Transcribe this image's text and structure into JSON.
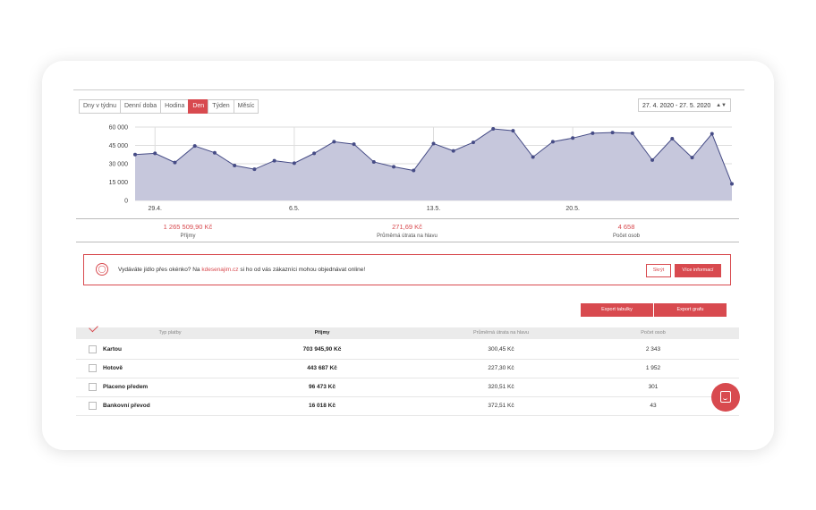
{
  "period_tabs": [
    {
      "label": "Dny v týdnu",
      "active": false
    },
    {
      "label": "Denní doba",
      "active": false
    },
    {
      "label": "Hodina",
      "active": false
    },
    {
      "label": "Den",
      "active": true
    },
    {
      "label": "Týden",
      "active": false
    },
    {
      "label": "Měsíc",
      "active": false
    }
  ],
  "date_range": {
    "value": "27. 4. 2020 - 27. 5. 2020",
    "arrows": "▲▼"
  },
  "chart_data": {
    "type": "area",
    "y_ticks": [
      "60 000",
      "45 000",
      "30 000",
      "15 000",
      "0"
    ],
    "y_tick_values": [
      60000,
      45000,
      30000,
      15000,
      0
    ],
    "ylim": [
      0,
      60000
    ],
    "x_tick_labels": [
      {
        "label": "29.4.",
        "index": 1
      },
      {
        "label": "6.5.",
        "index": 8
      },
      {
        "label": "13.5.",
        "index": 15
      },
      {
        "label": "20.5.",
        "index": 22
      }
    ],
    "values": [
      37500,
      38500,
      31000,
      44500,
      39000,
      28500,
      25500,
      32500,
      30500,
      38500,
      48000,
      46000,
      31500,
      27500,
      24500,
      46500,
      40500,
      47500,
      58500,
      57000,
      35500,
      48000,
      51000,
      55000,
      55500,
      55000,
      33000,
      50500,
      35000,
      54500,
      13500
    ],
    "grid": true,
    "colors": {
      "line": "#464c86",
      "fill": "#c6c7dc",
      "grid": "#dddddd"
    }
  },
  "summary": [
    {
      "value": "1 265 509,90 Kč",
      "label": "Příjmy"
    },
    {
      "value": "271,69 Kč",
      "label": "Průměrná útrata na hlavu"
    },
    {
      "value": "4 658",
      "label": "Počet osob"
    }
  ],
  "banner": {
    "text_before": "Vydáváte jídlo přes okénko? Na ",
    "link": "kdesenajim.cz",
    "text_after": " si ho od vás zákazníci mohou objednávat online!",
    "hide_label": "Skrýt",
    "more_label": "Více informací"
  },
  "export": {
    "table_label": "Export tabulky",
    "chart_label": "Export grafu"
  },
  "table": {
    "headers": [
      "Typ platby",
      "Příjmy",
      "Průměrná útrata na hlavu",
      "Počet osob"
    ],
    "rows": [
      [
        "Kartou",
        "703 945,90 Kč",
        "300,45 Kč",
        "2 343"
      ],
      [
        "Hotově",
        "443 687 Kč",
        "227,30 Kč",
        "1 952"
      ],
      [
        "Placeno předem",
        "96 473 Kč",
        "320,51 Kč",
        "301"
      ],
      [
        "Bankovní převod",
        "16 018 Kč",
        "372,51 Kč",
        "43"
      ]
    ]
  },
  "accent_color": "#d84a4f"
}
